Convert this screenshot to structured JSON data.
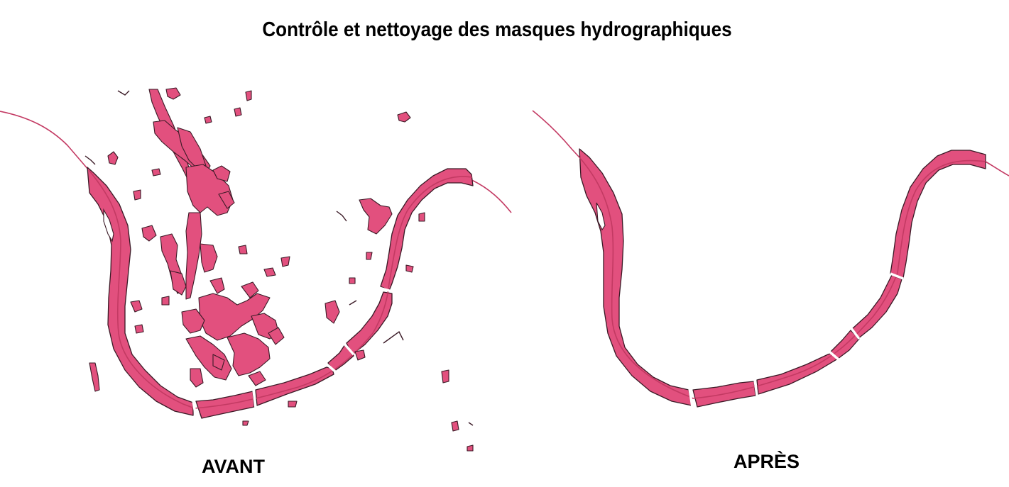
{
  "title": "Contrôle et nettoyage des masques hydrographiques",
  "panels": {
    "before": {
      "label": "AVANT"
    },
    "after": {
      "label": "APRÈS"
    }
  },
  "colors": {
    "water_fill": "#e2507e",
    "water_outline": "#3a1a26",
    "river_centerline": "#c33a63",
    "background": "#ffffff"
  }
}
